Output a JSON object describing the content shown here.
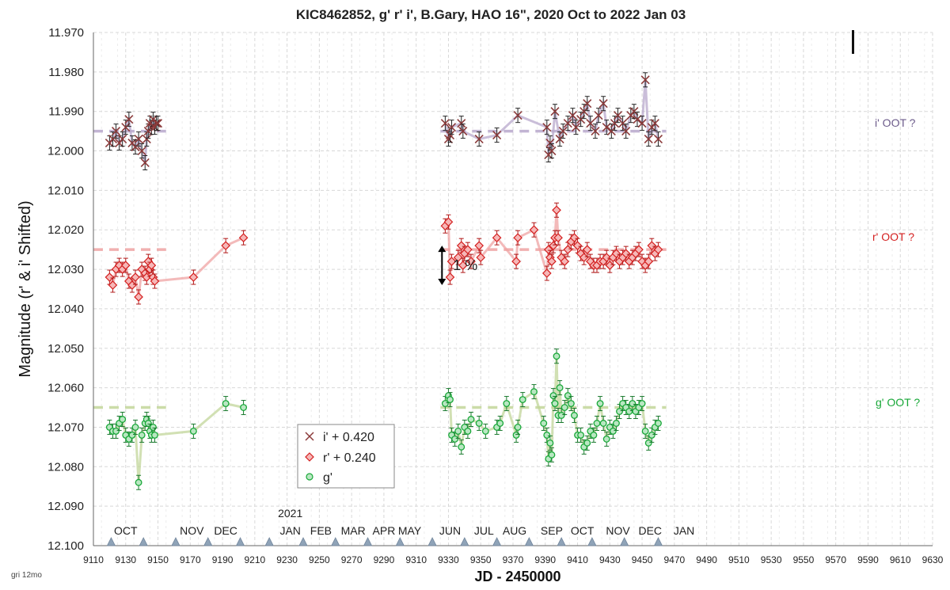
{
  "chart_data": {
    "type": "scatter",
    "title": "KIC8462852, g' r' i', B.Gary, HAO 16\", 2020 Oct to 2022 Jan 03",
    "xlabel": "JD - 2450000",
    "ylabel": "Magnitude  (r' & i' Shifted)",
    "xlim": [
      9110,
      9630
    ],
    "ylim": [
      11.97,
      12.1
    ],
    "y_inverted": true,
    "grid": true,
    "x_ticks": [
      9110,
      9130,
      9150,
      9170,
      9190,
      9210,
      9230,
      9250,
      9270,
      9290,
      9310,
      9330,
      9350,
      9370,
      9390,
      9410,
      9430,
      9450,
      9470,
      9490,
      9510,
      9530,
      9550,
      9570,
      9590,
      9610,
      9630
    ],
    "y_ticks": [
      "11.970",
      "11.980",
      "11.990",
      "12.000",
      "12.010",
      "12.020",
      "12.030",
      "12.040",
      "12.050",
      "12.060",
      "12.070",
      "12.080",
      "12.090",
      "12.100"
    ],
    "month_labels": [
      {
        "label": "OCT",
        "x": 9130
      },
      {
        "label": "NOV",
        "x": 9171
      },
      {
        "label": "DEC",
        "x": 9192
      },
      {
        "label": "JAN",
        "x": 9232
      },
      {
        "label": "FEB",
        "x": 9251
      },
      {
        "label": "MAR",
        "x": 9271
      },
      {
        "label": "APR",
        "x": 9290
      },
      {
        "label": "MAY",
        "x": 9306
      },
      {
        "label": "JUN",
        "x": 9331
      },
      {
        "label": "JUL",
        "x": 9352
      },
      {
        "label": "AUG",
        "x": 9371
      },
      {
        "label": "SEP",
        "x": 9394
      },
      {
        "label": "OCT",
        "x": 9413
      },
      {
        "label": "NOV",
        "x": 9435
      },
      {
        "label": "DEC",
        "x": 9455
      },
      {
        "label": "JAN",
        "x": 9476
      }
    ],
    "year_label": {
      "label": "2021",
      "x": 9232
    },
    "triangle_markers_x": [
      9121,
      9141,
      9161,
      9181,
      9201,
      9219,
      9240,
      9260,
      9280,
      9300,
      9320,
      9340,
      9360,
      9380,
      9400,
      9419,
      9439,
      9460
    ],
    "legend": {
      "position": "bottom-center",
      "entries": [
        "i' + 0.420",
        "r' + 0.240",
        "g'"
      ]
    },
    "annotations": {
      "percent_label": "1 %",
      "percent_arrow": {
        "x": 9326,
        "y_top": 12.024,
        "y_bottom": 12.034
      },
      "i_oot": "i' OOT ?",
      "r_oot": "r' OOT ?",
      "g_oot": "g' OOT ?",
      "corner_note": "gri 12mo"
    },
    "colors": {
      "i": "#8B3A3A",
      "r": "#D42020",
      "g": "#18A838",
      "i_line": "#B8A8CC",
      "r_line": "#EFA3A3",
      "g_line": "#C2D69A"
    },
    "series": [
      {
        "name": "i' + 0.420",
        "marker": "x",
        "x": [
          9120,
          9122,
          9124,
          9126,
          9128,
          9130,
          9132,
          9134,
          9136,
          9138,
          9140,
          9142,
          9143,
          9144,
          9145,
          9146,
          9147,
          9148,
          9149,
          9150,
          9328,
          9330,
          9331,
          9332,
          9338,
          9339,
          9349,
          9360,
          9373,
          9391,
          9392,
          9393,
          9394,
          9396,
          9399,
          9401,
          9404,
          9407,
          9409,
          9412,
          9414,
          9416,
          9418,
          9421,
          9423,
          9426,
          9428,
          9431,
          9433,
          9435,
          9438,
          9440,
          9443,
          9445,
          9447,
          9450,
          9452,
          9454,
          9456,
          9458,
          9460
        ],
        "y": [
          11.998,
          11.997,
          11.995,
          11.998,
          11.997,
          11.994,
          11.992,
          11.998,
          11.999,
          11.997,
          12.0,
          12.003,
          11.997,
          11.995,
          11.993,
          11.994,
          11.992,
          11.994,
          11.993,
          11.993,
          11.993,
          11.997,
          11.996,
          11.994,
          11.993,
          11.995,
          11.997,
          11.996,
          11.991,
          11.994,
          12.001,
          11.998,
          12.0,
          11.99,
          11.997,
          11.995,
          11.993,
          11.991,
          11.994,
          11.992,
          11.99,
          11.988,
          11.993,
          11.995,
          11.991,
          11.988,
          11.994,
          11.995,
          11.993,
          11.991,
          11.993,
          11.995,
          11.991,
          11.99,
          11.992,
          11.993,
          11.982,
          11.997,
          11.994,
          11.993,
          11.997
        ]
      },
      {
        "name": "r' + 0.240",
        "marker": "diamond",
        "x": [
          9120,
          9122,
          9124,
          9126,
          9128,
          9130,
          9132,
          9134,
          9136,
          9138,
          9140,
          9142,
          9143,
          9144,
          9145,
          9146,
          9147,
          9148,
          9172,
          9192,
          9203,
          9328,
          9330,
          9331,
          9332,
          9336,
          9338,
          9339,
          9340,
          9342,
          9344,
          9349,
          9350,
          9360,
          9372,
          9373,
          9383,
          9391,
          9392,
          9393,
          9394,
          9395,
          9396,
          9397,
          9398,
          9400,
          9402,
          9404,
          9406,
          9408,
          9410,
          9412,
          9414,
          9416,
          9418,
          9420,
          9422,
          9424,
          9426,
          9428,
          9430,
          9432,
          9434,
          9436,
          9438,
          9440,
          9442,
          9444,
          9446,
          9448,
          9450,
          9452,
          9454,
          9456,
          9458,
          9460
        ],
        "y": [
          12.032,
          12.034,
          12.03,
          12.029,
          12.03,
          12.029,
          12.033,
          12.034,
          12.032,
          12.037,
          12.03,
          12.031,
          12.032,
          12.028,
          12.03,
          12.029,
          12.032,
          12.033,
          12.032,
          12.024,
          12.022,
          12.019,
          12.018,
          12.032,
          12.028,
          12.027,
          12.024,
          12.029,
          12.026,
          12.025,
          12.028,
          12.024,
          12.027,
          12.022,
          12.028,
          12.022,
          12.02,
          12.031,
          12.025,
          12.027,
          12.028,
          12.024,
          12.022,
          12.015,
          12.022,
          12.027,
          12.028,
          12.025,
          12.023,
          12.022,
          12.024,
          12.026,
          12.027,
          12.025,
          12.028,
          12.029,
          12.029,
          12.028,
          12.028,
          12.027,
          12.029,
          12.027,
          12.026,
          12.028,
          12.027,
          12.026,
          12.028,
          12.027,
          12.026,
          12.025,
          12.028,
          12.029,
          12.028,
          12.024,
          12.026,
          12.025
        ]
      },
      {
        "name": "g'",
        "marker": "circle",
        "x": [
          9120,
          9122,
          9124,
          9126,
          9128,
          9130,
          9132,
          9134,
          9136,
          9138,
          9140,
          9142,
          9143,
          9144,
          9145,
          9146,
          9147,
          9148,
          9172,
          9192,
          9203,
          9328,
          9330,
          9331,
          9332,
          9334,
          9336,
          9338,
          9340,
          9342,
          9344,
          9349,
          9353,
          9360,
          9362,
          9366,
          9372,
          9373,
          9376,
          9383,
          9389,
          9391,
          9392,
          9393,
          9394,
          9395,
          9396,
          9397,
          9398,
          9399,
          9400,
          9402,
          9404,
          9406,
          9408,
          9410,
          9412,
          9414,
          9416,
          9418,
          9420,
          9422,
          9424,
          9426,
          9428,
          9430,
          9432,
          9434,
          9436,
          9438,
          9440,
          9442,
          9444,
          9446,
          9448,
          9450,
          9452,
          9454,
          9456,
          9458,
          9460
        ],
        "y": [
          12.07,
          12.071,
          12.071,
          12.069,
          12.068,
          12.072,
          12.073,
          12.072,
          12.07,
          12.084,
          12.072,
          12.069,
          12.068,
          12.069,
          12.071,
          12.072,
          12.07,
          12.072,
          12.071,
          12.064,
          12.065,
          12.064,
          12.062,
          12.063,
          12.072,
          12.073,
          12.071,
          12.075,
          12.07,
          12.071,
          12.068,
          12.069,
          12.071,
          12.07,
          12.069,
          12.064,
          12.072,
          12.07,
          12.063,
          12.061,
          12.069,
          12.072,
          12.078,
          12.074,
          12.077,
          12.062,
          12.064,
          12.052,
          12.067,
          12.06,
          12.067,
          12.065,
          12.062,
          12.064,
          12.067,
          12.072,
          12.072,
          12.075,
          12.074,
          12.071,
          12.072,
          12.069,
          12.064,
          12.069,
          12.073,
          12.07,
          12.071,
          12.069,
          12.066,
          12.064,
          12.065,
          12.066,
          12.064,
          12.066,
          12.065,
          12.064,
          12.071,
          12.074,
          12.072,
          12.07,
          12.069
        ]
      }
    ]
  }
}
